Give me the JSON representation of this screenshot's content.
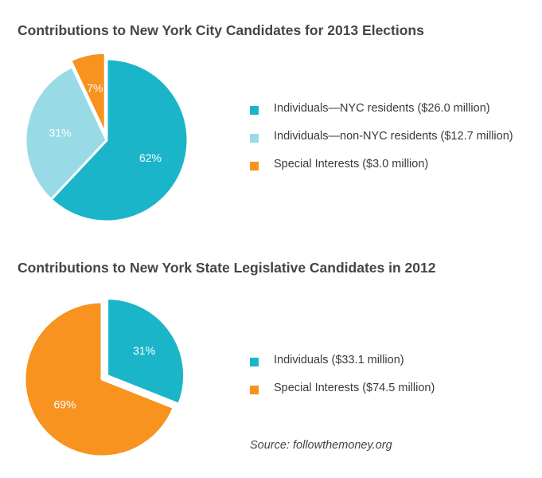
{
  "chart_data": [
    {
      "type": "pie",
      "title": "Contributions to New York City Candidates for 2013 Elections",
      "slices": [
        {
          "label": "Individuals—NYC residents ($26.0 million)",
          "value": 62,
          "value_label": "62%",
          "amount_millions": 26.0,
          "color": "#1bb5c9"
        },
        {
          "label": "Individuals—non-NYC residents ($12.7 million)",
          "value": 31,
          "value_label": "31%",
          "amount_millions": 12.7,
          "color": "#98dbe6"
        },
        {
          "label": "Special Interests ($3.0 million)",
          "value": 7,
          "value_label": "7%",
          "amount_millions": 3.0,
          "color": "#f7931e",
          "exploded": true
        }
      ],
      "legend_placement": "right"
    },
    {
      "type": "pie",
      "title": "Contributions to New York State Legislative Candidates in 2012",
      "slices": [
        {
          "label": "Individuals ($33.1 million)",
          "value": 31,
          "value_label": "31%",
          "amount_millions": 33.1,
          "color": "#1bb5c9",
          "exploded": true
        },
        {
          "label": "Special Interests ($74.5 million)",
          "value": 69,
          "value_label": "69%",
          "amount_millions": 74.5,
          "color": "#f7931e"
        }
      ],
      "legend_placement": "right"
    }
  ],
  "source": "Source: followthemoney.org"
}
